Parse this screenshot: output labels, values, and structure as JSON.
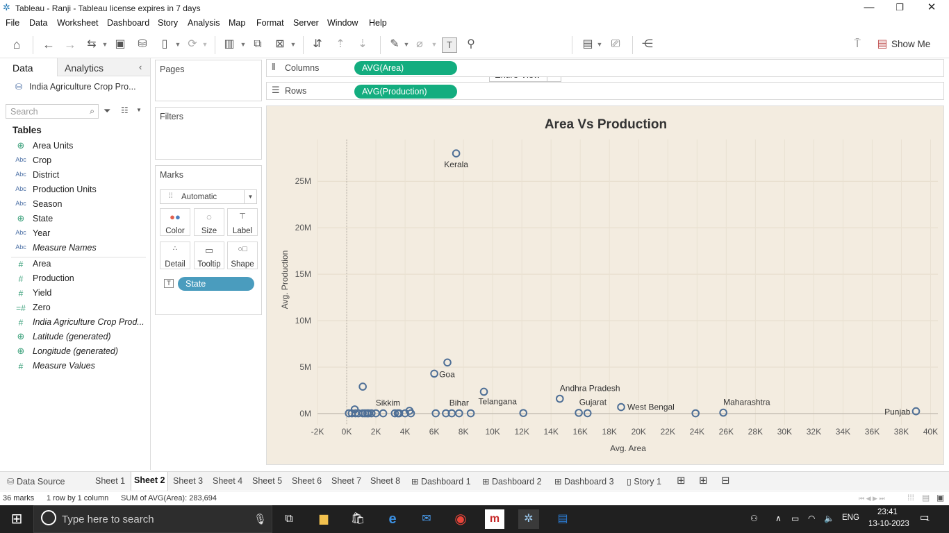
{
  "window": {
    "title": "Tableau - Ranji - Tableau license expires in 7 days",
    "controls": [
      "—",
      "❐",
      "✕"
    ]
  },
  "menu": [
    "File",
    "Data",
    "Worksheet",
    "Dashboard",
    "Story",
    "Analysis",
    "Map",
    "Format",
    "Server",
    "Window",
    "Help"
  ],
  "toolbar": {
    "fit_label": "Entire View",
    "show_me_label": "Show Me"
  },
  "left_pane": {
    "tabs": [
      "Data",
      "Analytics"
    ],
    "datasource": "India Agriculture Crop Pro...",
    "search_placeholder": "Search",
    "tables_heading": "Tables",
    "dimensions": [
      {
        "type": "globe",
        "name": "Area Units",
        "italic": false
      },
      {
        "type": "Abc",
        "name": "Crop",
        "italic": false
      },
      {
        "type": "Abc",
        "name": "District",
        "italic": false
      },
      {
        "type": "Abc",
        "name": "Production Units",
        "italic": false
      },
      {
        "type": "Abc",
        "name": "Season",
        "italic": false
      },
      {
        "type": "globe",
        "name": "State",
        "italic": false
      },
      {
        "type": "Abc",
        "name": "Year",
        "italic": false
      },
      {
        "type": "Abc",
        "name": "Measure Names",
        "italic": true
      }
    ],
    "measures": [
      {
        "type": "#",
        "name": "Area",
        "italic": false
      },
      {
        "type": "#",
        "name": "Production",
        "italic": false
      },
      {
        "type": "#",
        "name": "Yield",
        "italic": false
      },
      {
        "type": "=#",
        "name": "Zero",
        "italic": false
      },
      {
        "type": "#",
        "name": "India Agriculture Crop Prod...",
        "italic": true
      },
      {
        "type": "globe",
        "name": "Latitude (generated)",
        "italic": true
      },
      {
        "type": "globe",
        "name": "Longitude (generated)",
        "italic": true
      },
      {
        "type": "#",
        "name": "Measure Values",
        "italic": true
      }
    ]
  },
  "cards": {
    "pages": "Pages",
    "filters": "Filters",
    "marks": "Marks",
    "mark_type": "Automatic",
    "mark_buttons": [
      {
        "label": "Color",
        "icon": "color-icon"
      },
      {
        "label": "Size",
        "icon": "size-icon"
      },
      {
        "label": "Label",
        "icon": "label-icon"
      },
      {
        "label": "Detail",
        "icon": "detail-icon"
      },
      {
        "label": "Tooltip",
        "icon": "tooltip-icon"
      },
      {
        "label": "Shape",
        "icon": "shape-icon"
      }
    ],
    "label_field": "State"
  },
  "shelves": {
    "columns_label": "Columns",
    "columns_pill": "AVG(Area)",
    "rows_label": "Rows",
    "rows_pill": "AVG(Production)",
    "pill_color": "#13ad7f",
    "state_pill_color": "#4a9cbe"
  },
  "chart_data": {
    "type": "scatter",
    "title": "Area Vs Production",
    "xlabel": "Avg. Area",
    "ylabel": "Avg. Production",
    "xlim": [
      -2000,
      40500
    ],
    "ylim": [
      -1200000,
      29500000
    ],
    "x_ticks": [
      -2000,
      0,
      2000,
      4000,
      6000,
      8000,
      10000,
      12000,
      14000,
      16000,
      18000,
      20000,
      22000,
      24000,
      26000,
      28000,
      30000,
      32000,
      34000,
      36000,
      38000,
      40000
    ],
    "x_tick_labels": [
      "-2K",
      "0K",
      "2K",
      "4K",
      "6K",
      "8K",
      "10K",
      "12K",
      "14K",
      "16K",
      "18K",
      "20K",
      "22K",
      "24K",
      "26K",
      "28K",
      "30K",
      "32K",
      "34K",
      "36K",
      "38K",
      "40K"
    ],
    "y_ticks": [
      0,
      5000000,
      10000000,
      15000000,
      20000000,
      25000000
    ],
    "y_tick_labels": [
      "0M",
      "5M",
      "10M",
      "15M",
      "20M",
      "25M"
    ],
    "background": "#f3ece0",
    "mark_color": "#4e6f96",
    "points": [
      {
        "x": 7500,
        "y": 28000000,
        "label": "Kerala"
      },
      {
        "x": 6900,
        "y": 5500000,
        "label": ""
      },
      {
        "x": 6000,
        "y": 4300000,
        "label": "Goa"
      },
      {
        "x": 1100,
        "y": 2900000,
        "label": ""
      },
      {
        "x": 9400,
        "y": 2350000,
        "label": "Telangana"
      },
      {
        "x": 14600,
        "y": 1600000,
        "label": "Andhra Pradesh"
      },
      {
        "x": 18800,
        "y": 700000,
        "label": "West Bengal"
      },
      {
        "x": 39000,
        "y": 250000,
        "label": "Punjab"
      },
      {
        "x": 25800,
        "y": 100000,
        "label": "Maharashtra"
      },
      {
        "x": 23900,
        "y": 30000,
        "label": ""
      },
      {
        "x": 15900,
        "y": 80000,
        "label": ""
      },
      {
        "x": 16500,
        "y": 40000,
        "label": "Gujarat"
      },
      {
        "x": 12100,
        "y": 60000,
        "label": ""
      },
      {
        "x": 8500,
        "y": 30000,
        "label": ""
      },
      {
        "x": 7700,
        "y": 30000,
        "label": "Bihar"
      },
      {
        "x": 7200,
        "y": 30000,
        "label": ""
      },
      {
        "x": 6800,
        "y": 30000,
        "label": ""
      },
      {
        "x": 6100,
        "y": 30000,
        "label": ""
      },
      {
        "x": 4300,
        "y": 300000,
        "label": ""
      },
      {
        "x": 4400,
        "y": 30000,
        "label": ""
      },
      {
        "x": 4000,
        "y": 30000,
        "label": ""
      },
      {
        "x": 3600,
        "y": 30000,
        "label": ""
      },
      {
        "x": 3300,
        "y": 30000,
        "label": "Sikkim"
      },
      {
        "x": 2500,
        "y": 30000,
        "label": ""
      },
      {
        "x": 2000,
        "y": 30000,
        "label": ""
      },
      {
        "x": 1700,
        "y": 30000,
        "label": ""
      },
      {
        "x": 1400,
        "y": 30000,
        "label": ""
      },
      {
        "x": 1250,
        "y": 30000,
        "label": ""
      },
      {
        "x": 1100,
        "y": 30000,
        "label": ""
      },
      {
        "x": 800,
        "y": 30000,
        "label": ""
      },
      {
        "x": 550,
        "y": 450000,
        "label": ""
      },
      {
        "x": 350,
        "y": 30000,
        "label": ""
      },
      {
        "x": 150,
        "y": 30000,
        "label": ""
      },
      {
        "x": 1500,
        "y": 30000,
        "label": ""
      },
      {
        "x": 3500,
        "y": 30000,
        "label": ""
      },
      {
        "x": 600,
        "y": 30000,
        "label": ""
      }
    ]
  },
  "sheet_tabs": [
    "Data Source",
    "Sheet 1",
    "Sheet 2",
    "Sheet 3",
    "Sheet 4",
    "Sheet 5",
    "Sheet 6",
    "Sheet 7",
    "Sheet 8",
    "Dashboard 1",
    "Dashboard 2",
    "Dashboard 3",
    "Story 1"
  ],
  "active_sheet": "Sheet 2",
  "status": {
    "marks": "36 marks",
    "rows_cols": "1 row by 1 column",
    "sum": "SUM of AVG(Area): 283,694"
  },
  "taskbar": {
    "search_placeholder": "Type here to search",
    "lang": "ENG",
    "time": "23:41",
    "date": "13-10-2023",
    "notifications": "1"
  }
}
